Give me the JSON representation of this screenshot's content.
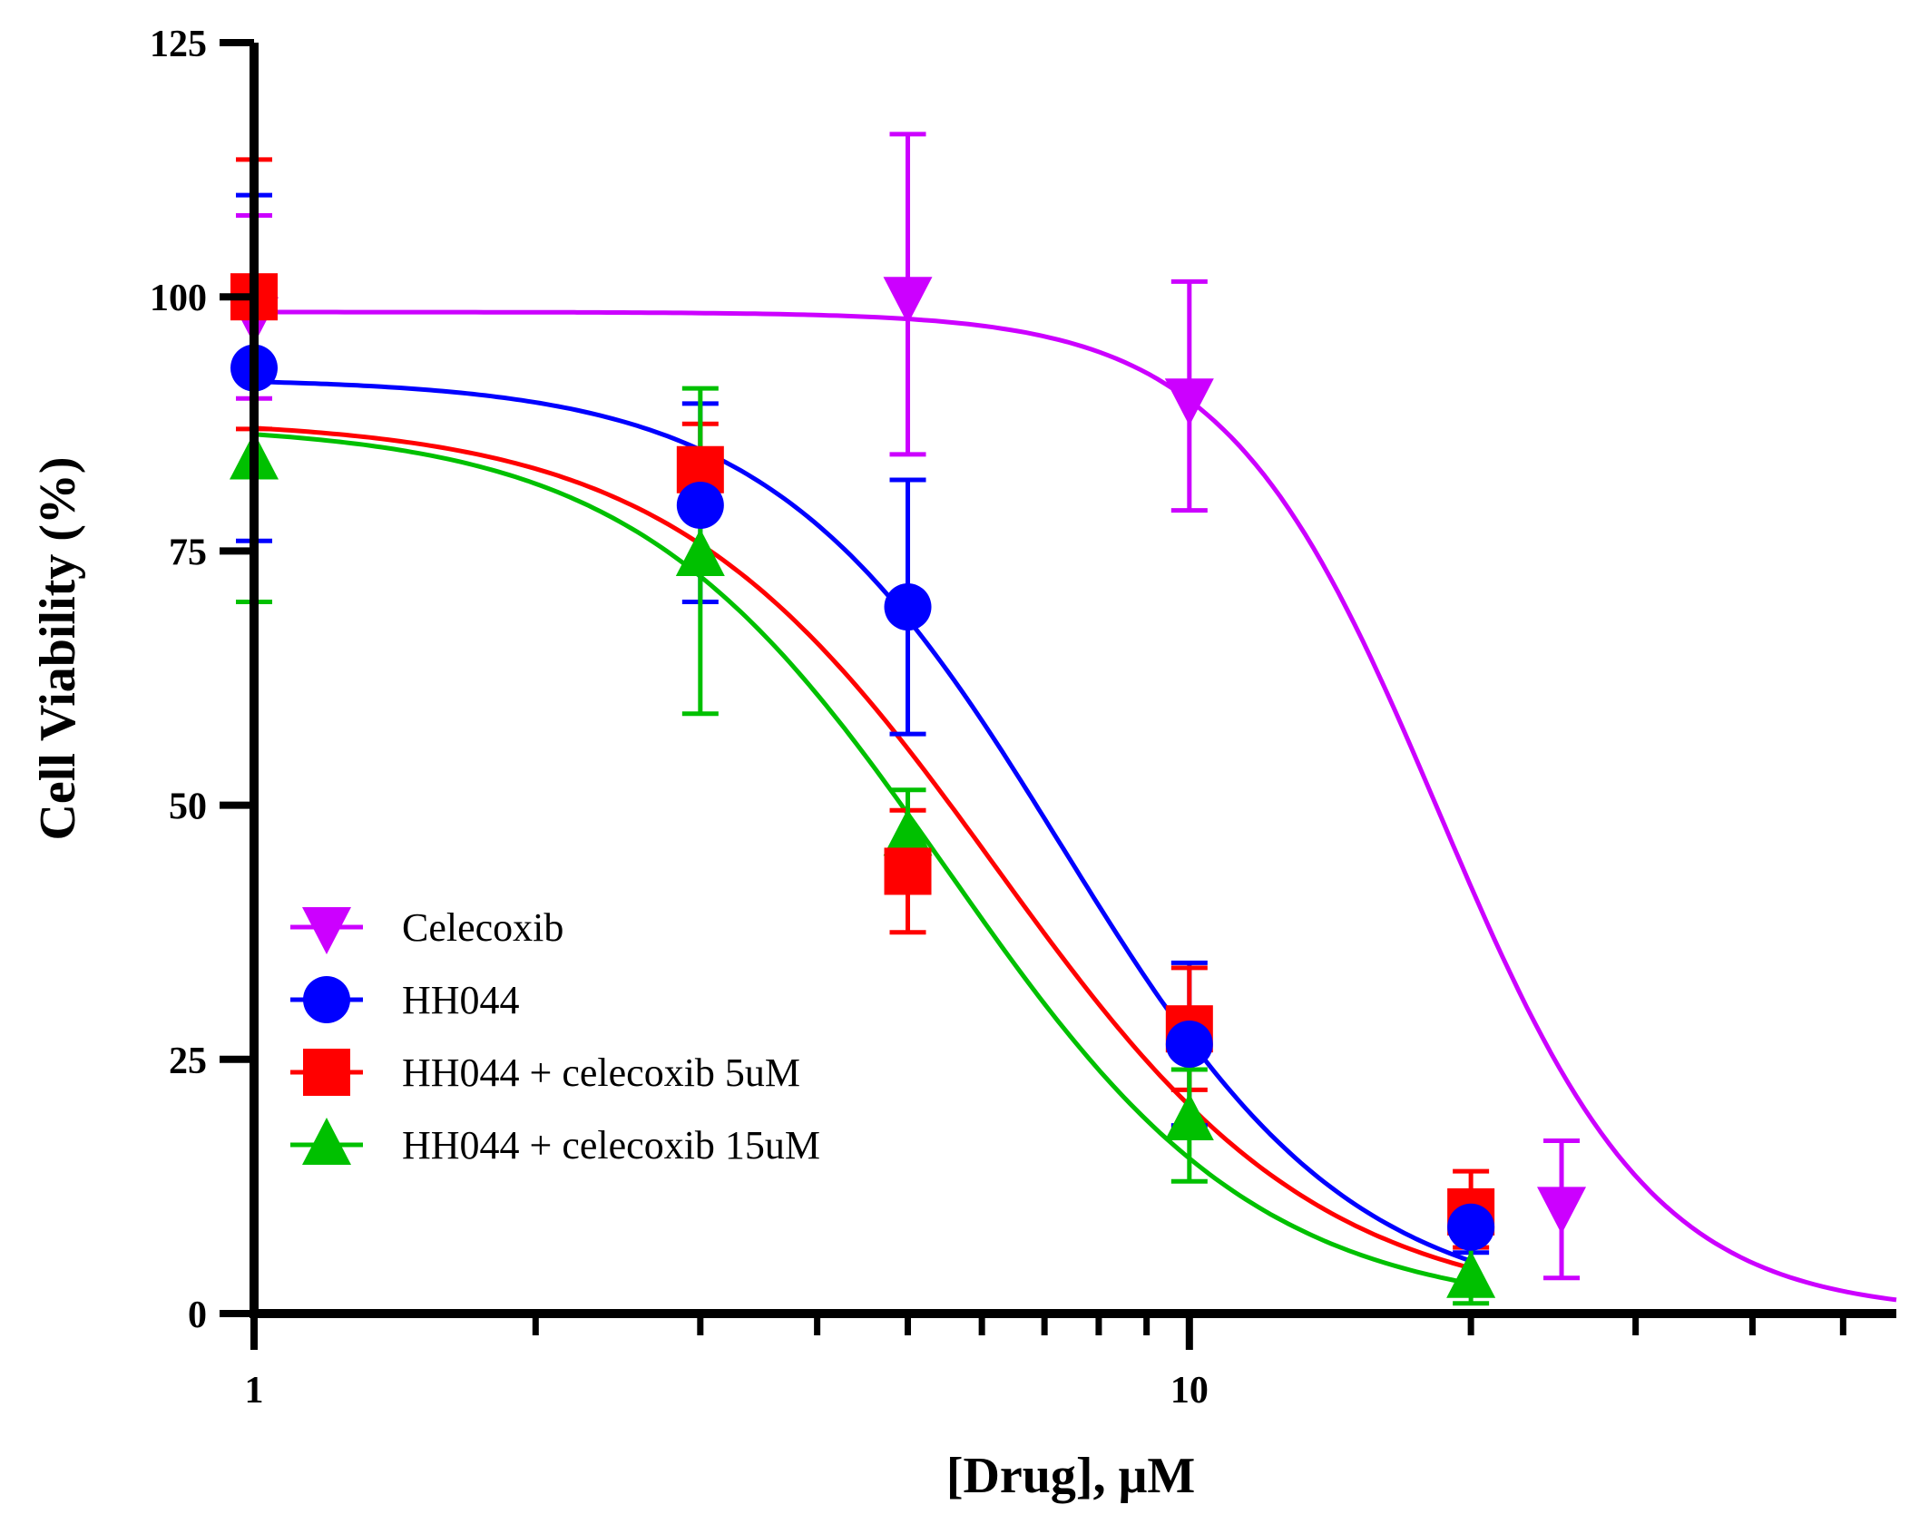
{
  "chart_data": {
    "type": "line",
    "title": "",
    "xlabel": "[Drug], μM",
    "ylabel": "Cell Viability (%)",
    "x_scale": "log10",
    "xlim": [
      1,
      57
    ],
    "ylim": [
      0,
      125
    ],
    "x_tick_labels": [
      "1",
      "10"
    ],
    "y_tick_labels": [
      "0",
      "25",
      "50",
      "75",
      "100",
      "125"
    ],
    "y_ticks": [
      0,
      25,
      50,
      75,
      100,
      125
    ],
    "x_major_ticks": [
      1,
      10
    ],
    "x_minor_ticks": [
      2,
      3,
      4,
      5,
      6,
      7,
      8,
      9,
      20,
      30,
      40,
      50
    ],
    "legend_position": "lower-left",
    "series": [
      {
        "name": "Celecoxib",
        "color": "#CC00FF",
        "marker": "triangle-down",
        "points": [
          {
            "x": 1,
            "y": 98,
            "err_low": 90,
            "err_high": 108
          },
          {
            "x": 5,
            "y": 100,
            "err_low": 84.5,
            "err_high": 116
          },
          {
            "x": 10,
            "y": 90,
            "err_low": 79,
            "err_high": 101.5
          },
          {
            "x": 25,
            "y": 10.5,
            "err_low": 3.5,
            "err_high": 17
          }
        ],
        "fit": {
          "top": 98.5,
          "ic50": 18.5,
          "hill": 3.8,
          "x_start": 1,
          "x_end": 57
        }
      },
      {
        "name": "HH044",
        "color": "#0000FF",
        "marker": "circle",
        "points": [
          {
            "x": 1,
            "y": 93,
            "err_low": 76,
            "err_high": 110
          },
          {
            "x": 3,
            "y": 79.5,
            "err_low": 70,
            "err_high": 89.5
          },
          {
            "x": 5,
            "y": 69.5,
            "err_low": 57,
            "err_high": 82
          },
          {
            "x": 10,
            "y": 26.5,
            "err_low": 18.5,
            "err_high": 34.5
          },
          {
            "x": 20,
            "y": 8.5,
            "err_low": 6,
            "err_high": 11
          }
        ],
        "fit": {
          "top": 92,
          "ic50": 7.3,
          "hill": 2.8,
          "x_start": 1,
          "x_end": 20
        }
      },
      {
        "name": "HH044 + celecoxib 5uM",
        "color": "#FF0000",
        "marker": "square",
        "points": [
          {
            "x": 1,
            "y": 100,
            "err_low": 87,
            "err_high": 113.5
          },
          {
            "x": 3,
            "y": 83,
            "err_low": 78.5,
            "err_high": 87.5
          },
          {
            "x": 5,
            "y": 43.5,
            "err_low": 37.5,
            "err_high": 49.5
          },
          {
            "x": 10,
            "y": 28,
            "err_low": 22,
            "err_high": 34
          },
          {
            "x": 20,
            "y": 10,
            "err_low": 6.5,
            "err_high": 14
          }
        ],
        "fit": {
          "top": 88,
          "ic50": 6.2,
          "hill": 2.5,
          "x_start": 1,
          "x_end": 20
        }
      },
      {
        "name": "HH044 + celecoxib 15uM",
        "color": "#00C000",
        "marker": "triangle-up",
        "points": [
          {
            "x": 1,
            "y": 84,
            "err_low": 70,
            "err_high": 98
          },
          {
            "x": 3,
            "y": 74.5,
            "err_low": 59,
            "err_high": 91
          },
          {
            "x": 5,
            "y": 47,
            "err_low": 43.5,
            "err_high": 51.5
          },
          {
            "x": 10,
            "y": 19,
            "err_low": 13,
            "err_high": 24
          },
          {
            "x": 20,
            "y": 3.5,
            "err_low": 1,
            "err_high": 8
          }
        ],
        "fit": {
          "top": 87.5,
          "ic50": 5.5,
          "hill": 2.6,
          "x_start": 1,
          "x_end": 20
        }
      }
    ]
  }
}
